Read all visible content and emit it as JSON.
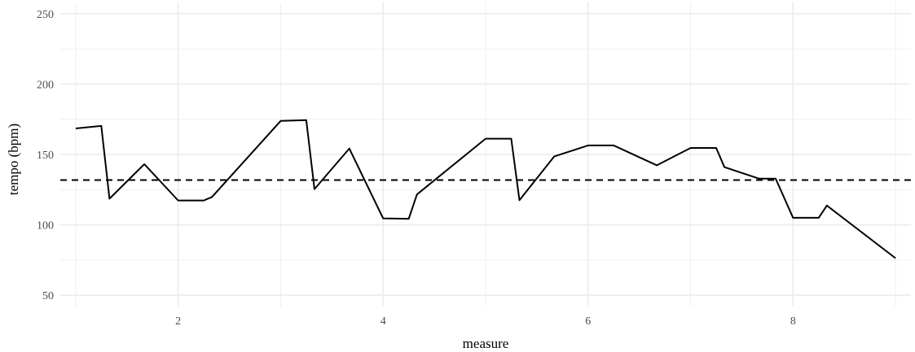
{
  "chart_data": {
    "type": "line",
    "title": "",
    "xlabel": "measure",
    "ylabel": "tempo (bpm)",
    "xlim": [
      0.85,
      9.15
    ],
    "ylim": [
      42,
      258
    ],
    "x_ticks": [
      2,
      4,
      6,
      8
    ],
    "x_tick_labels": [
      "2",
      "4",
      "6",
      "8"
    ],
    "x_minor_ticks": [
      1,
      3,
      5,
      7,
      9
    ],
    "y_ticks": [
      50,
      100,
      150,
      200,
      250
    ],
    "y_tick_labels": [
      "50",
      "100",
      "150",
      "200",
      "250"
    ],
    "y_minor_ticks": [
      75,
      125,
      175,
      225
    ],
    "grid": true,
    "legend": "none",
    "colors": {
      "line": "#000000",
      "reference": "#000000",
      "grid": "#ebebeb"
    },
    "reference_line": {
      "y": 131.8,
      "style": "dashed"
    },
    "series": [
      {
        "x": [
          1.0,
          1.25,
          1.33,
          1.67,
          2.0,
          2.25,
          2.33,
          3.0,
          3.25,
          3.33,
          3.67,
          4.0,
          4.25,
          4.33,
          5.0,
          5.25,
          5.33,
          5.67,
          6.0,
          6.25,
          6.67,
          7.0,
          7.25,
          7.33,
          7.67,
          7.83,
          8.0,
          8.25,
          8.33,
          9.0
        ],
        "y": [
          168.5,
          170.3,
          118.6,
          143.1,
          117.3,
          117.3,
          119.8,
          173.8,
          174.4,
          125.4,
          154.2,
          104.6,
          104.3,
          121.6,
          161.2,
          161.2,
          117.5,
          148.6,
          156.4,
          156.4,
          142.3,
          154.6,
          154.6,
          141.0,
          132.8,
          132.8,
          105.0,
          105.0,
          113.7,
          76.3
        ]
      }
    ]
  }
}
